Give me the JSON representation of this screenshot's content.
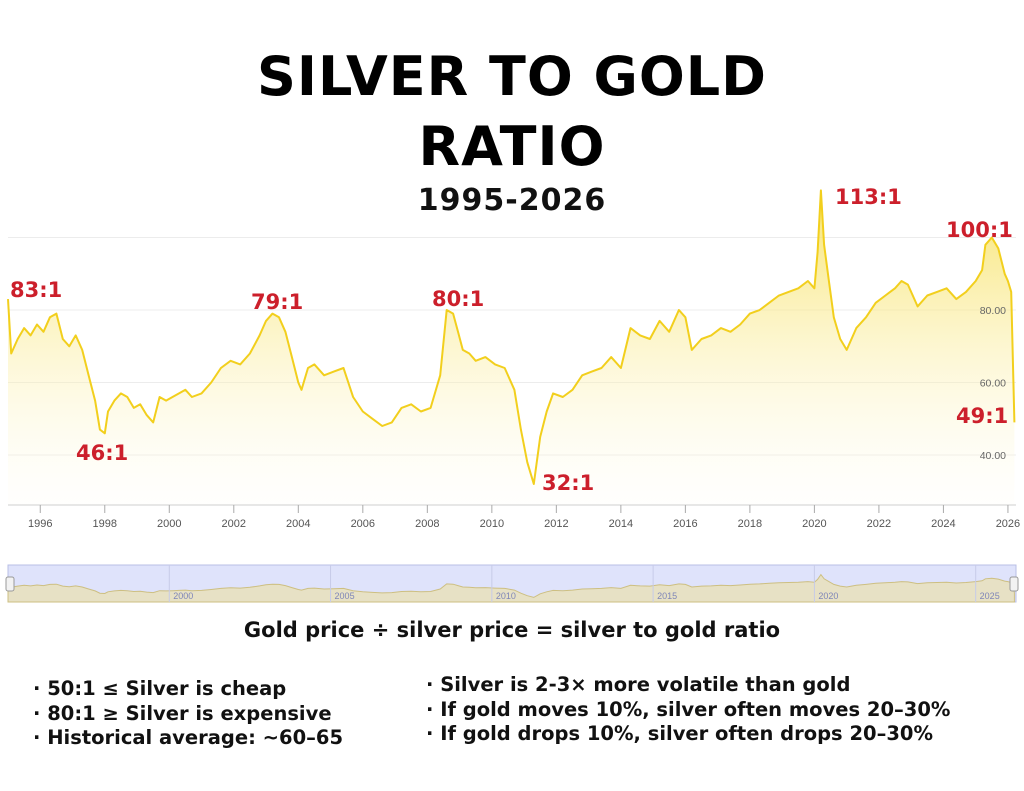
{
  "title_line1": "SILVER TO GOLD",
  "title_line2": "RATIO",
  "subtitle": "1995-2026",
  "caption": "Gold price ÷ silver price = silver to gold ratio",
  "notes_left": [
    "50:1 ≤ Silver is cheap",
    "80:1 ≥ Silver is expensive",
    "Historical average: ~60–65"
  ],
  "notes_right": [
    "Silver is 2-3× more volatile than gold",
    "If gold moves 10%, silver often moves 20–30%",
    "If gold drops 10%, silver often drops 20–30%"
  ],
  "colors": {
    "line": "#f2cf1d",
    "fill_top": "#f6df55",
    "annotation": "#cc1f2b",
    "navigator_fill": "#dfe3fb"
  },
  "chart_data": {
    "type": "area",
    "title": "SILVER TO GOLD RATIO",
    "subtitle": "1995-2026",
    "x_ticks": [
      "1996",
      "1998",
      "2000",
      "2002",
      "2004",
      "2006",
      "2008",
      "2010",
      "2012",
      "2014",
      "2016",
      "2018",
      "2020",
      "2022",
      "2024",
      "2026"
    ],
    "y_ticks": [
      "40.00",
      "60.00",
      "80.00"
    ],
    "xlim": [
      1995.0,
      2026.25
    ],
    "ylim": [
      33,
      120
    ],
    "grid": true,
    "series": [
      {
        "x": [
          1995.0,
          1995.1,
          1995.3,
          1995.5,
          1995.7,
          1995.9,
          1996.1,
          1996.3,
          1996.5,
          1996.7,
          1996.9,
          1997.1,
          1997.3,
          1997.5,
          1997.7,
          1997.85,
          1998.0,
          1998.1,
          1998.3,
          1998.5,
          1998.7,
          1998.9,
          1999.1,
          1999.3,
          1999.5,
          1999.7,
          1999.9,
          2000.1,
          2000.3,
          2000.5,
          2000.7,
          2001.0,
          2001.3,
          2001.6,
          2001.9,
          2002.2,
          2002.5,
          2002.8,
          2003.0,
          2003.2,
          2003.4,
          2003.6,
          2003.8,
          2004.0,
          2004.1,
          2004.3,
          2004.5,
          2004.8,
          2005.1,
          2005.4,
          2005.7,
          2006.0,
          2006.3,
          2006.6,
          2006.9,
          2007.2,
          2007.5,
          2007.8,
          2008.1,
          2008.4,
          2008.6,
          2008.8,
          2008.95,
          2009.1,
          2009.3,
          2009.5,
          2009.8,
          2010.1,
          2010.4,
          2010.7,
          2010.9,
          2011.1,
          2011.3,
          2011.5,
          2011.7,
          2011.9,
          2012.2,
          2012.5,
          2012.8,
          2013.1,
          2013.4,
          2013.7,
          2014.0,
          2014.3,
          2014.6,
          2014.9,
          2015.2,
          2015.5,
          2015.8,
          2016.0,
          2016.2,
          2016.5,
          2016.8,
          2017.1,
          2017.4,
          2017.7,
          2018.0,
          2018.3,
          2018.6,
          2018.9,
          2019.2,
          2019.5,
          2019.8,
          2020.0,
          2020.1,
          2020.2,
          2020.3,
          2020.45,
          2020.6,
          2020.8,
          2021.0,
          2021.3,
          2021.6,
          2021.9,
          2022.2,
          2022.5,
          2022.7,
          2022.9,
          2023.2,
          2023.5,
          2023.8,
          2024.1,
          2024.4,
          2024.7,
          2025.0,
          2025.2,
          2025.3,
          2025.5,
          2025.7,
          2025.9,
          2026.0,
          2026.1,
          2026.2
        ],
        "y": [
          83,
          68,
          72,
          75,
          73,
          76,
          74,
          78,
          79,
          72,
          70,
          73,
          69,
          62,
          55,
          47,
          46,
          52,
          55,
          57,
          56,
          53,
          54,
          51,
          49,
          56,
          55,
          56,
          57,
          58,
          56,
          57,
          60,
          64,
          66,
          65,
          68,
          73,
          77,
          79,
          78,
          74,
          67,
          60,
          58,
          64,
          65,
          62,
          63,
          64,
          56,
          52,
          50,
          48,
          49,
          53,
          54,
          52,
          53,
          62,
          80,
          79,
          74,
          69,
          68,
          66,
          67,
          65,
          64,
          58,
          47,
          38,
          32,
          45,
          52,
          57,
          56,
          58,
          62,
          63,
          64,
          67,
          64,
          75,
          73,
          72,
          77,
          74,
          80,
          78,
          69,
          72,
          73,
          75,
          74,
          76,
          79,
          80,
          82,
          84,
          85,
          86,
          88,
          86,
          96,
          113,
          98,
          88,
          78,
          72,
          69,
          75,
          78,
          82,
          84,
          86,
          88,
          87,
          81,
          84,
          85,
          86,
          83,
          85,
          88,
          91,
          98,
          100,
          97,
          90,
          88,
          85,
          49
        ]
      }
    ],
    "annotations": [
      {
        "label": "83:1",
        "x": 1995.0,
        "y": 83
      },
      {
        "label": "46:1",
        "x": 1998.0,
        "y": 46
      },
      {
        "label": "79:1",
        "x": 2003.2,
        "y": 79
      },
      {
        "label": "80:1",
        "x": 2008.8,
        "y": 80
      },
      {
        "label": "32:1",
        "x": 2011.3,
        "y": 32
      },
      {
        "label": "113:1",
        "x": 2020.2,
        "y": 113
      },
      {
        "label": "100:1",
        "x": 2025.3,
        "y": 100
      },
      {
        "label": "49:1",
        "x": 2026.2,
        "y": 49
      }
    ],
    "navigator_ticks": [
      "2000",
      "2005",
      "2010",
      "2015",
      "2020",
      "2025"
    ]
  }
}
